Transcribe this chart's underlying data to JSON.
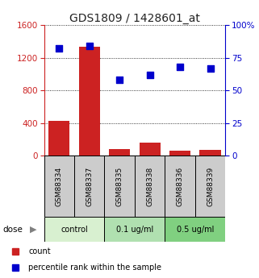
{
  "title": "GDS1809 / 1428601_at",
  "samples": [
    "GSM88334",
    "GSM88337",
    "GSM88335",
    "GSM88338",
    "GSM88336",
    "GSM88339"
  ],
  "counts": [
    430,
    1330,
    80,
    155,
    65,
    70
  ],
  "percentiles": [
    82,
    84,
    58,
    62,
    68,
    67
  ],
  "groups": [
    {
      "label": "control",
      "indices": [
        0,
        1
      ],
      "color": "#d8f0d0"
    },
    {
      "label": "0.1 ug/ml",
      "indices": [
        2,
        3
      ],
      "color": "#b0e0b0"
    },
    {
      "label": "0.5 ug/ml",
      "indices": [
        4,
        5
      ],
      "color": "#80d080"
    }
  ],
  "bar_color": "#cc2222",
  "scatter_color": "#0000cc",
  "left_yticks": [
    0,
    400,
    800,
    1200,
    1600
  ],
  "right_yticks": [
    0,
    25,
    50,
    75,
    100
  ],
  "left_ylim": [
    0,
    1600
  ],
  "right_ylim": [
    0,
    100
  ],
  "title_color": "#222222",
  "left_tick_color": "#cc2222",
  "right_tick_color": "#0000cc",
  "dose_label": "dose",
  "legend_count_label": "count",
  "legend_pct_label": "percentile rank within the sample",
  "grid_color": "#000000",
  "background_color": "#ffffff",
  "sample_box_color": "#cccccc",
  "scatter_marker": "s",
  "scatter_size": 35
}
